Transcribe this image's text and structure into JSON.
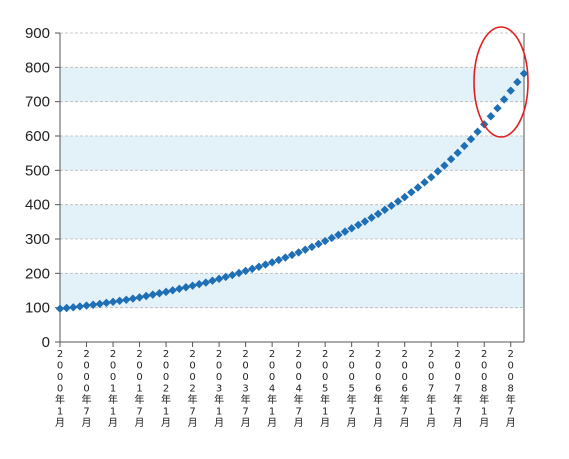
{
  "chart_data": {
    "type": "scatter",
    "title": "",
    "xlabel": "",
    "ylabel": "",
    "ylim": [
      0,
      900
    ],
    "y_ticks": [
      0,
      100,
      200,
      300,
      400,
      500,
      600,
      700,
      800,
      900
    ],
    "grid": "horizontal dashed, alternating light-blue bands",
    "x_ticks": [
      "2000年1月",
      "2000年7月",
      "2001年1月",
      "2001年7月",
      "2002年1月",
      "2002年7月",
      "2003年1月",
      "2003年7月",
      "2004年1月",
      "2004年7月",
      "2005年1月",
      "2005年7月",
      "2006年1月",
      "2006年7月",
      "2007年1月",
      "2007年7月",
      "2008年1月",
      "2008年7月"
    ],
    "series": [
      {
        "marker": "diamond",
        "color": "#1f6fb5",
        "x": [
          "2000-01",
          "2000-04",
          "2000-07",
          "2000-10",
          "2001-01",
          "2001-04",
          "2001-07",
          "2001-10",
          "2002-01",
          "2002-04",
          "2002-07",
          "2002-10",
          "2003-01",
          "2003-04",
          "2003-07",
          "2003-10",
          "2004-01",
          "2004-04",
          "2004-07",
          "2004-10",
          "2005-01",
          "2005-04",
          "2005-07",
          "2005-10",
          "2006-01",
          "2006-04",
          "2006-07",
          "2006-10",
          "2007-01",
          "2007-04",
          "2007-07",
          "2007-10",
          "2008-01",
          "2008-04",
          "2008-07",
          "2008-10"
        ],
        "values": [
          97,
          101,
          106,
          111,
          117,
          123,
          130,
          138,
          146,
          155,
          164,
          173,
          184,
          195,
          207,
          219,
          232,
          246,
          261,
          277,
          294,
          312,
          331,
          351,
          373,
          397,
          422,
          450,
          480,
          514,
          551,
          591,
          634,
          681,
          732,
          782
        ]
      }
    ],
    "annotation": {
      "shape": "ellipse",
      "color": "#e02020",
      "target": "2008 data points"
    }
  },
  "colors": {
    "band": "#e3f1f9",
    "grid": "#b9b9b9",
    "axis": "#555555",
    "marker": "#1f6fb5",
    "highlight": "#e02020"
  }
}
